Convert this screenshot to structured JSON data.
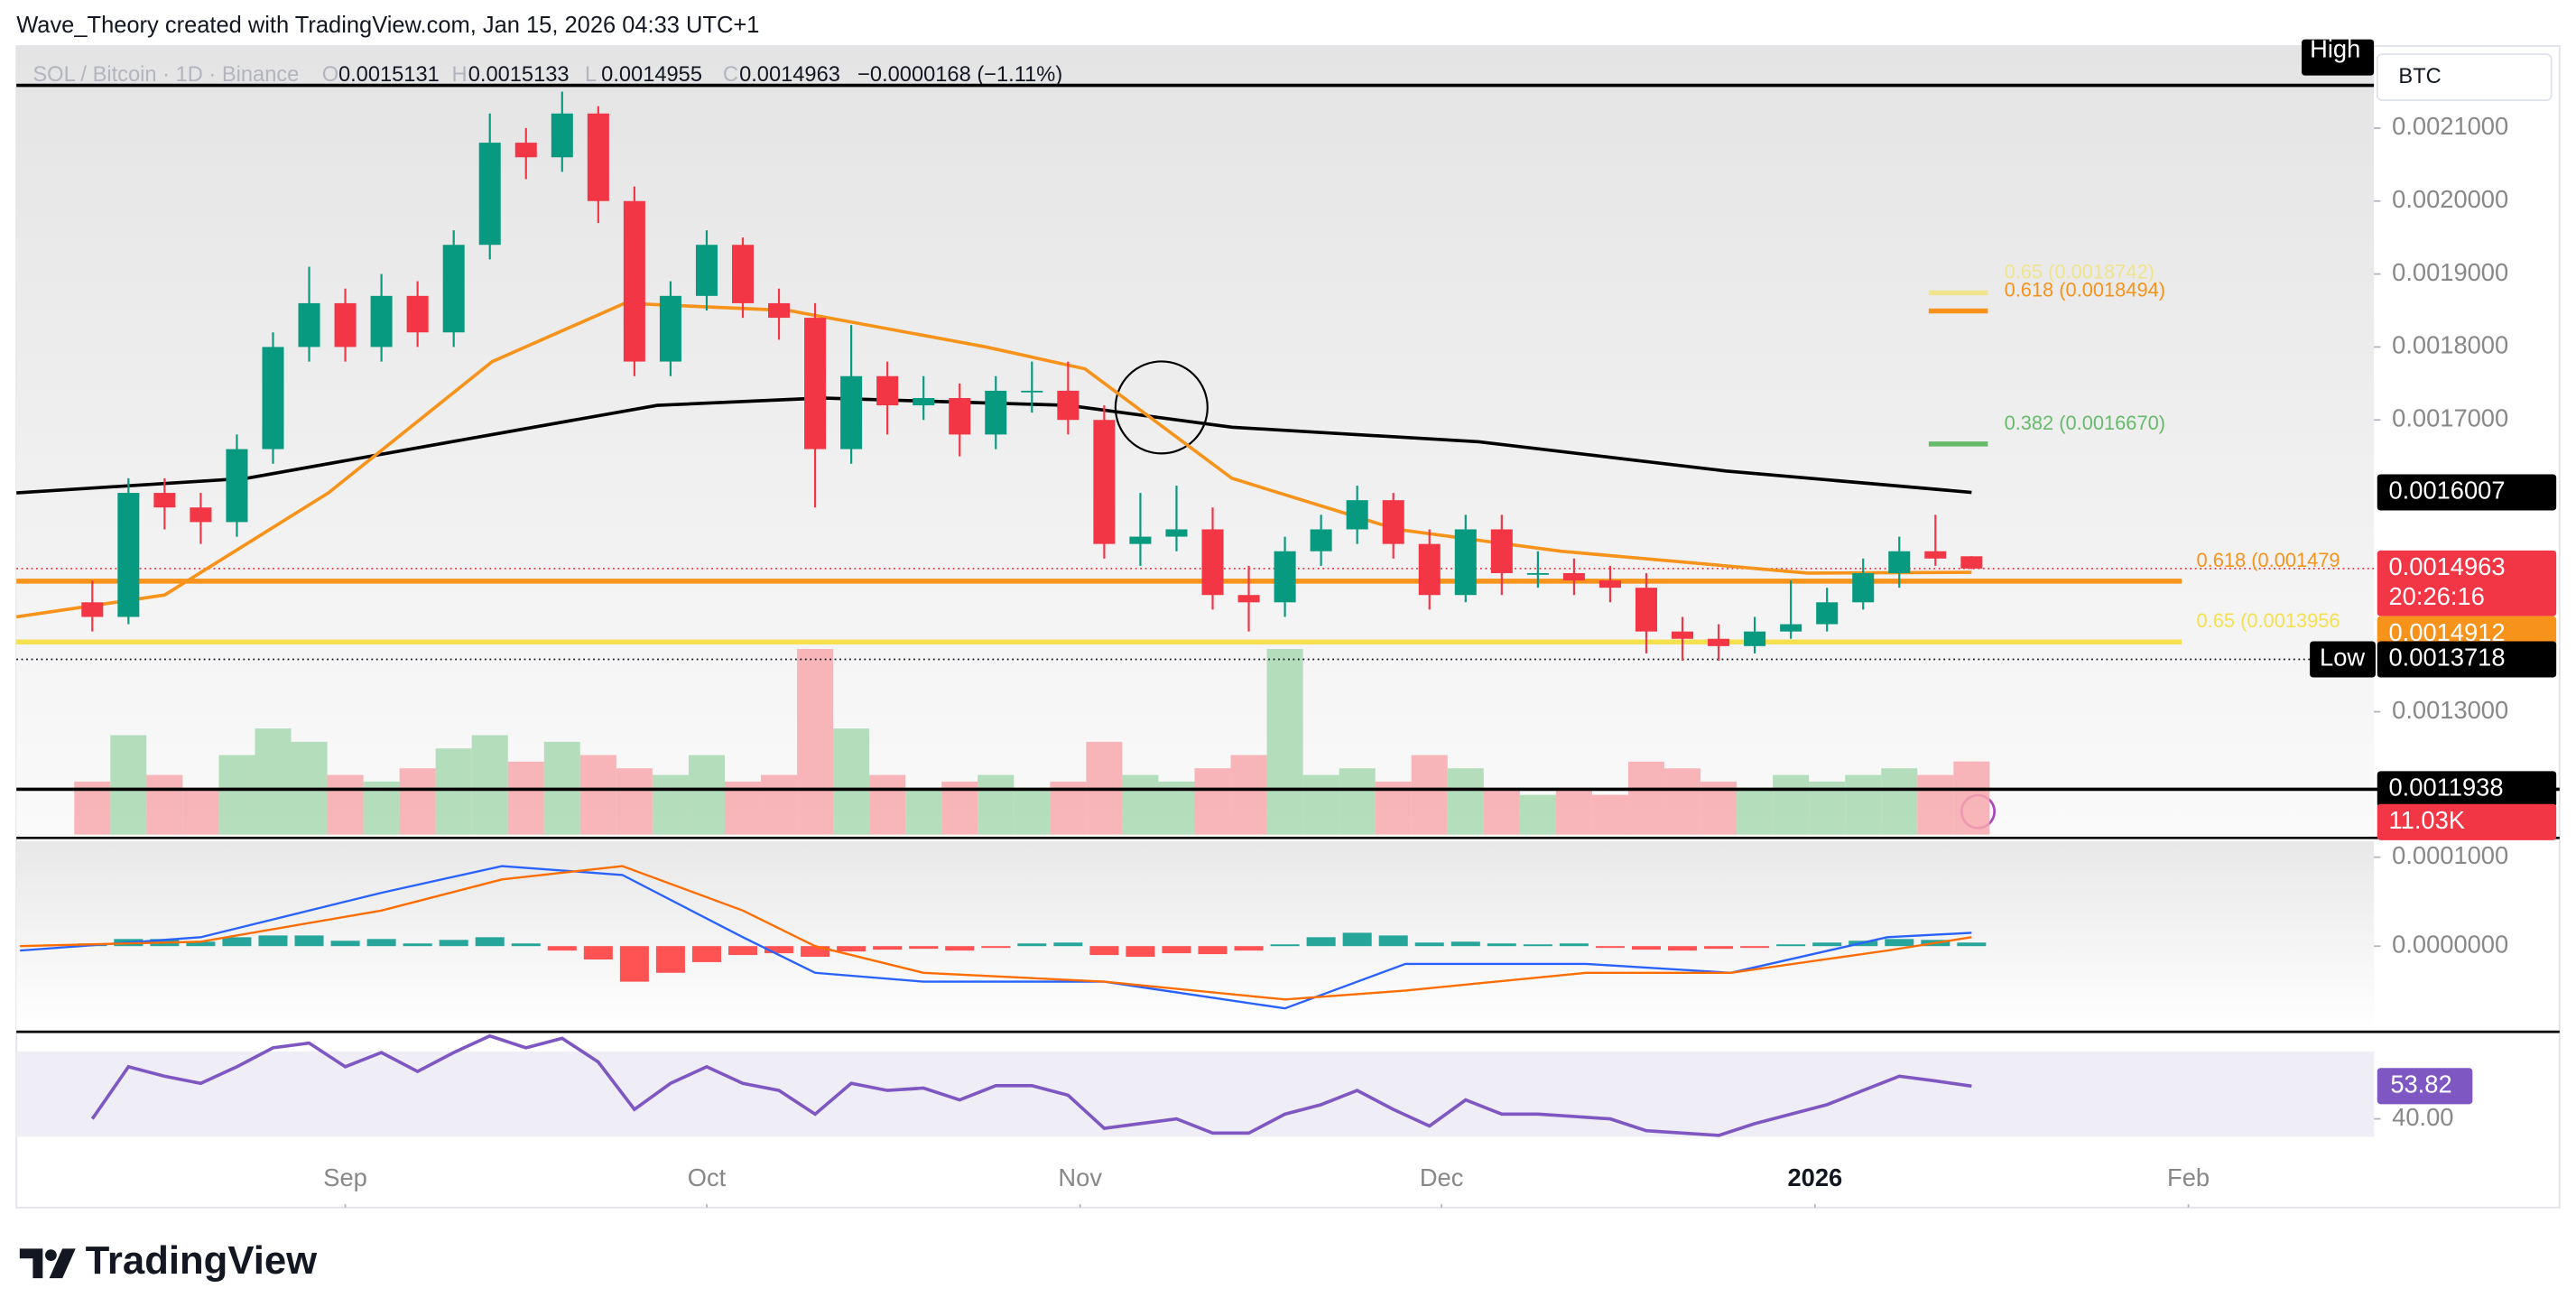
{
  "chart_data": {
    "type": "candlestick",
    "title": "Wave_Theory created with TradingView.com, Jan 15, 2026 04:33 UTC+1",
    "symbol": "SOL / Bitcoin · 1D · Binance",
    "ohlc_labels": [
      "O",
      "H",
      "L",
      "C"
    ],
    "change_label": "−0.0000168 (−1.11%)",
    "currency": "BTC",
    "countdown": "20:26:16",
    "brand": "TradingView",
    "up_color": "#089981",
    "down_color": "#f23645",
    "xlim": [
      -5.3,
      190.4
    ],
    "xticks": [
      {
        "value": 22,
        "label": "Sep"
      },
      {
        "value": 52,
        "label": "Oct"
      },
      {
        "value": 83,
        "label": "Nov"
      },
      {
        "value": 113,
        "label": "Dec"
      },
      {
        "value": 144,
        "label": "2026"
      },
      {
        "value": 175,
        "label": "Feb"
      }
    ],
    "ylim": [
      0.0011316,
      0.002208
    ],
    "yticks": [
      {
        "value": 0.0021,
        "label": "0.0021000"
      },
      {
        "value": 0.002,
        "label": "0.0020000"
      },
      {
        "value": 0.0019,
        "label": "0.0019000"
      },
      {
        "value": 0.0018,
        "label": "0.0018000"
      },
      {
        "value": 0.0017,
        "label": "0.0017000"
      },
      {
        "value": 0.0013,
        "label": "0.0013000"
      }
    ],
    "x": [
      1,
      4,
      7,
      10,
      13,
      16,
      19,
      22,
      25,
      28,
      31,
      34,
      37,
      40,
      43,
      46,
      49,
      52,
      55,
      58,
      61,
      64,
      67,
      70,
      73,
      76,
      79,
      82,
      85,
      88,
      91,
      94,
      97,
      100,
      103,
      106,
      109,
      112,
      115,
      118,
      121,
      124,
      127,
      130,
      133,
      136,
      139,
      142,
      145,
      148,
      151,
      154,
      157
    ],
    "open": [
      0.00145,
      0.00143,
      0.0016,
      0.00158,
      0.00156,
      0.00166,
      0.0018,
      0.00186,
      0.0018,
      0.00187,
      0.00182,
      0.00194,
      0.00208,
      0.00206,
      0.00212,
      0.002,
      0.00178,
      0.00187,
      0.00194,
      0.00186,
      0.00184,
      0.00166,
      0.00176,
      0.00172,
      0.00173,
      0.00168,
      0.00174,
      0.00174,
      0.0017,
      0.00153,
      0.00154,
      0.00155,
      0.00146,
      0.00145,
      0.00152,
      0.00155,
      0.00159,
      0.00153,
      0.00146,
      0.00155,
      0.00149,
      0.00149,
      0.00148,
      0.00147,
      0.00141,
      0.0014,
      0.00139,
      0.00141,
      0.00142,
      0.00145,
      0.00149,
      0.00152,
      0.0015131
    ],
    "high": [
      0.00148,
      0.00162,
      0.00162,
      0.0016,
      0.00168,
      0.00182,
      0.00191,
      0.00188,
      0.0019,
      0.00189,
      0.00196,
      0.00212,
      0.0021,
      0.00215,
      0.00213,
      0.00202,
      0.00189,
      0.00196,
      0.00195,
      0.00188,
      0.00186,
      0.00183,
      0.00178,
      0.00176,
      0.00175,
      0.00176,
      0.00178,
      0.00178,
      0.00172,
      0.0016,
      0.00161,
      0.00158,
      0.0015,
      0.00154,
      0.00157,
      0.00161,
      0.0016,
      0.00155,
      0.00157,
      0.00157,
      0.00152,
      0.00151,
      0.0015,
      0.00149,
      0.00143,
      0.00142,
      0.00143,
      0.00148,
      0.00147,
      0.00151,
      0.00154,
      0.00157,
      0.0015133
    ],
    "low": [
      0.00141,
      0.00142,
      0.00155,
      0.00153,
      0.00154,
      0.00164,
      0.00178,
      0.00178,
      0.00178,
      0.0018,
      0.0018,
      0.00192,
      0.00203,
      0.00204,
      0.00197,
      0.00176,
      0.00176,
      0.00185,
      0.00184,
      0.00181,
      0.00158,
      0.00164,
      0.00168,
      0.0017,
      0.00165,
      0.00166,
      0.00171,
      0.00168,
      0.00151,
      0.0015,
      0.00152,
      0.00144,
      0.00141,
      0.00143,
      0.0015,
      0.00153,
      0.00151,
      0.00144,
      0.00145,
      0.00146,
      0.00147,
      0.00146,
      0.00145,
      0.00138,
      0.00137,
      0.00137,
      0.00138,
      0.0014,
      0.00141,
      0.00144,
      0.00147,
      0.0015,
      0.0014955
    ],
    "close": [
      0.00143,
      0.0016,
      0.00158,
      0.00156,
      0.00166,
      0.0018,
      0.00186,
      0.0018,
      0.00187,
      0.00182,
      0.00194,
      0.00208,
      0.00206,
      0.00212,
      0.002,
      0.00178,
      0.00187,
      0.00194,
      0.00186,
      0.00184,
      0.00166,
      0.00176,
      0.00172,
      0.00173,
      0.00168,
      0.00174,
      0.00174,
      0.0017,
      0.00153,
      0.00154,
      0.00155,
      0.00146,
      0.00145,
      0.00152,
      0.00155,
      0.00159,
      0.00153,
      0.00146,
      0.00155,
      0.00149,
      0.00149,
      0.00148,
      0.00147,
      0.00141,
      0.0014,
      0.00139,
      0.00141,
      0.00142,
      0.00145,
      0.00149,
      0.00152,
      0.00151,
      0.0014963
    ],
    "moving_averages": [
      {
        "x": [
          -5.3,
          13.8,
          34.2,
          47.9,
          61.5,
          82,
          95.6,
          116.1,
          136.6,
          157
        ],
        "values": [
          0.0016,
          0.00162,
          0.00168,
          0.00172,
          0.00173,
          0.00172,
          0.00169,
          0.00167,
          0.00163,
          0.0016007
        ],
        "color": "#000000"
      },
      {
        "x": [
          -5.3,
          7,
          20.6,
          34.2,
          45.2,
          58.8,
          75.2,
          83.4,
          95.6,
          109.3,
          122.9,
          136.6,
          143.4,
          157
        ],
        "values": [
          0.00143,
          0.00146,
          0.0016,
          0.00178,
          0.00186,
          0.00185,
          0.0018,
          0.00177,
          0.00162,
          0.00155,
          0.00152,
          0.0015,
          0.00149,
          0.0014912
        ],
        "color": "#f7931a"
      }
    ],
    "levels": [
      {
        "label": "0.618 (0.001479",
        "value": 0.001479,
        "color": "#f7931a"
      },
      {
        "label": "0.65 (0.0013956",
        "value": 0.0013956,
        "color": "#f5e050"
      }
    ],
    "targets": [
      {
        "label": "0.65 (0.0018742)",
        "value": 0.0018742,
        "color": "#f5e050"
      },
      {
        "label": "0.618 (0.0018494)",
        "value": 0.0018494,
        "color": "#f7931a"
      },
      {
        "label": "0.382 (0.0016670)",
        "value": 0.001667,
        "color": "#66bb6a"
      }
    ],
    "high_line": {
      "label": "High",
      "value": 0.0021586
    },
    "low_line": {
      "label": "Low",
      "value": 0.0013718
    },
    "support_line": {
      "value": 0.0011938
    },
    "volume": {
      "lim": [
        0,
        28000
      ],
      "value_label": "11.03K",
      "values": [
        8000,
        15000,
        9000,
        7000,
        12000,
        16000,
        14000,
        9000,
        8000,
        10000,
        13000,
        15000,
        11000,
        14000,
        12000,
        10000,
        9000,
        12000,
        8000,
        9000,
        28000,
        16000,
        9000,
        7000,
        8000,
        9000,
        7000,
        8000,
        14000,
        9000,
        8000,
        10000,
        12000,
        28000,
        9000,
        10000,
        8000,
        12000,
        10000,
        7000,
        6000,
        7000,
        6000,
        11000,
        10000,
        8000,
        7000,
        9000,
        8000,
        9000,
        10000,
        9000,
        11030
      ]
    },
    "macd": {
      "ylim": [
        -9.63e-05,
        0.000118
      ],
      "yticks": [
        {
          "value": 0.0001,
          "label": "0.0001000"
        },
        {
          "value": 0,
          "label": "0.0000000"
        }
      ],
      "x": [
        -5,
        10,
        25,
        35,
        45,
        55,
        61,
        70,
        85,
        100,
        110,
        125,
        137,
        150,
        157
      ],
      "macd": [
        -5e-06,
        1e-05,
        6e-05,
        9e-05,
        8e-05,
        1e-05,
        -3e-05,
        -4e-05,
        -4e-05,
        -7e-05,
        -2e-05,
        -2e-05,
        -3e-05,
        1e-05,
        1.5e-05
      ],
      "signal": [
        0,
        5e-06,
        4e-05,
        7.5e-05,
        9e-05,
        4e-05,
        0,
        -3e-05,
        -4e-05,
        -6e-05,
        -5e-05,
        -3e-05,
        -3e-05,
        -5e-06,
        1e-05
      ],
      "macd_color": "#2962ff",
      "signal_color": "#ff6d00",
      "histogram": [
        3e-06,
        8e-06,
        8e-06,
        5e-06,
        1e-05,
        1.2e-05,
        1.2e-05,
        6e-06,
        8e-06,
        3e-06,
        7e-06,
        1e-05,
        3e-06,
        -5e-06,
        -1.5e-05,
        -4e-05,
        -3e-05,
        -1.8e-05,
        -1e-05,
        -8e-06,
        -1.2e-05,
        -6e-06,
        -4e-06,
        -3e-06,
        -5e-06,
        -2e-06,
        3e-06,
        4e-06,
        -1e-05,
        -1.2e-05,
        -8e-06,
        -9e-06,
        -5e-06,
        2e-06,
        1e-05,
        1.5e-05,
        1.2e-05,
        4e-06,
        5e-06,
        3e-06,
        2e-06,
        3e-06,
        -2e-06,
        -4e-06,
        -5e-06,
        -3e-06,
        -2e-06,
        2e-06,
        4e-06,
        6e-06,
        8e-06,
        7e-06,
        4e-06
      ]
    },
    "rsi": {
      "ylim": [
        31,
        74
      ],
      "yticks": [
        {
          "value": 40,
          "label": "40.00"
        }
      ],
      "color": "#7e57c2",
      "values": [
        40,
        62,
        58,
        55,
        62,
        70,
        72,
        62,
        68,
        60,
        68,
        75,
        70,
        74,
        64,
        44,
        55,
        62,
        55,
        52,
        42,
        55,
        52,
        53,
        48,
        54,
        54,
        50,
        36,
        38,
        40,
        34,
        34,
        42,
        46,
        52,
        44,
        37,
        48,
        42,
        42,
        41,
        40,
        35,
        34,
        33,
        38,
        42,
        46,
        52,
        58,
        56,
        53.82
      ]
    }
  }
}
